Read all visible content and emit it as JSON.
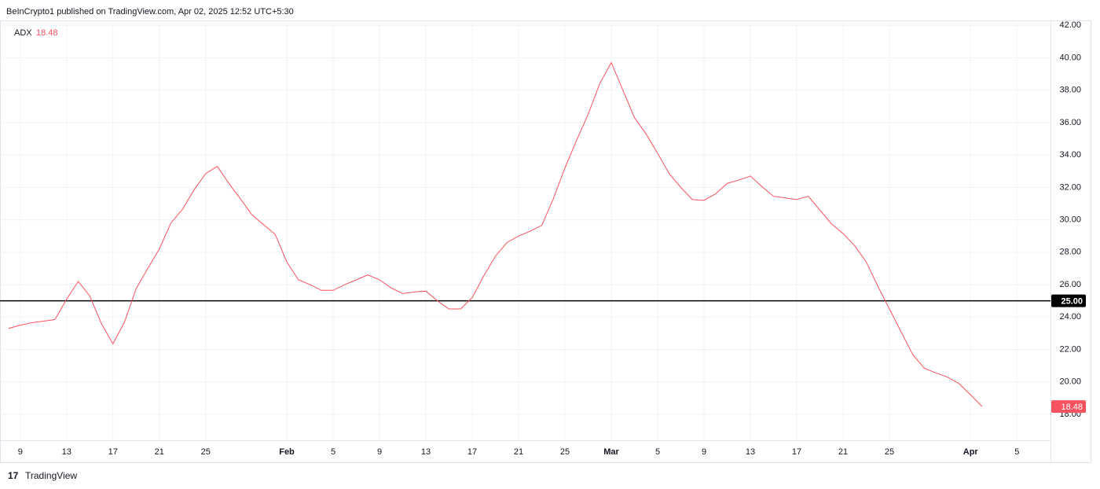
{
  "header": "BeInCrypto1 published on TradingView.com, Apr 02, 2025 12:52 UTC+5:30",
  "footer": "TradingView",
  "chart_data": {
    "type": "line",
    "indicator": {
      "name": "ADX",
      "value_label": "18.48"
    },
    "categories": [
      null,
      "9",
      null,
      null,
      null,
      "13",
      null,
      null,
      null,
      "17",
      null,
      null,
      null,
      "21",
      null,
      null,
      null,
      "25",
      null,
      null,
      null,
      null,
      null,
      null,
      "Feb",
      null,
      null,
      null,
      "5",
      null,
      null,
      null,
      "9",
      null,
      null,
      null,
      "13",
      null,
      null,
      null,
      "17",
      null,
      null,
      null,
      "21",
      null,
      null,
      null,
      "25",
      null,
      null,
      null,
      "Mar",
      null,
      null,
      null,
      "5",
      null,
      null,
      null,
      "9",
      null,
      null,
      null,
      "13",
      null,
      null,
      null,
      "17",
      null,
      null,
      null,
      "21",
      null,
      null,
      null,
      "25",
      null,
      null,
      null,
      null,
      null,
      null,
      "Apr",
      null,
      null,
      null,
      "5"
    ],
    "series": [
      {
        "name": "ADX",
        "color": "#f7525f",
        "values": [
          23.3,
          23.5,
          23.65,
          23.75,
          23.85,
          25.1,
          26.2,
          25.3,
          23.6,
          22.35,
          23.7,
          25.75,
          27.0,
          28.2,
          29.8,
          30.65,
          31.85,
          32.85,
          33.3,
          32.25,
          31.3,
          30.3,
          29.7,
          29.1,
          27.4,
          26.3,
          26.0,
          25.65,
          25.65,
          26.0,
          26.3,
          26.6,
          26.3,
          25.8,
          25.45,
          25.55,
          25.6,
          25.0,
          24.5,
          24.5,
          25.2,
          26.55,
          27.75,
          28.6,
          29.0,
          29.3,
          29.65,
          31.3,
          33.2,
          34.9,
          36.5,
          38.4,
          39.7,
          38.0,
          36.3,
          35.3,
          34.1,
          32.85,
          32.0,
          31.25,
          31.2,
          31.6,
          32.25,
          32.45,
          32.7,
          32.05,
          31.45,
          31.35,
          31.25,
          31.45,
          30.6,
          29.75,
          29.15,
          28.4,
          27.4,
          25.9,
          24.5,
          23.1,
          21.7,
          20.85,
          20.55,
          20.3,
          19.9,
          19.2,
          18.48,
          null,
          null,
          null
        ]
      }
    ],
    "hline": {
      "value": 25,
      "label": "25.00",
      "color": "#000000"
    },
    "ylim": [
      16.4,
      42.3
    ],
    "yticks": [
      {
        "value": 18,
        "label": "18.00"
      },
      {
        "value": 20,
        "label": "20.00"
      },
      {
        "value": 22,
        "label": "22.00"
      },
      {
        "value": 24,
        "label": "24.00"
      },
      {
        "value": 26,
        "label": "26.00"
      },
      {
        "value": 28,
        "label": "28.00"
      },
      {
        "value": 30,
        "label": "30.00"
      },
      {
        "value": 32,
        "label": "32.00"
      },
      {
        "value": 34,
        "label": "34.00"
      },
      {
        "value": 36,
        "label": "36.00"
      },
      {
        "value": 38,
        "label": "38.00"
      },
      {
        "value": 40,
        "label": "40.00"
      },
      {
        "value": 42,
        "label": "42.00"
      }
    ],
    "grid": true
  }
}
